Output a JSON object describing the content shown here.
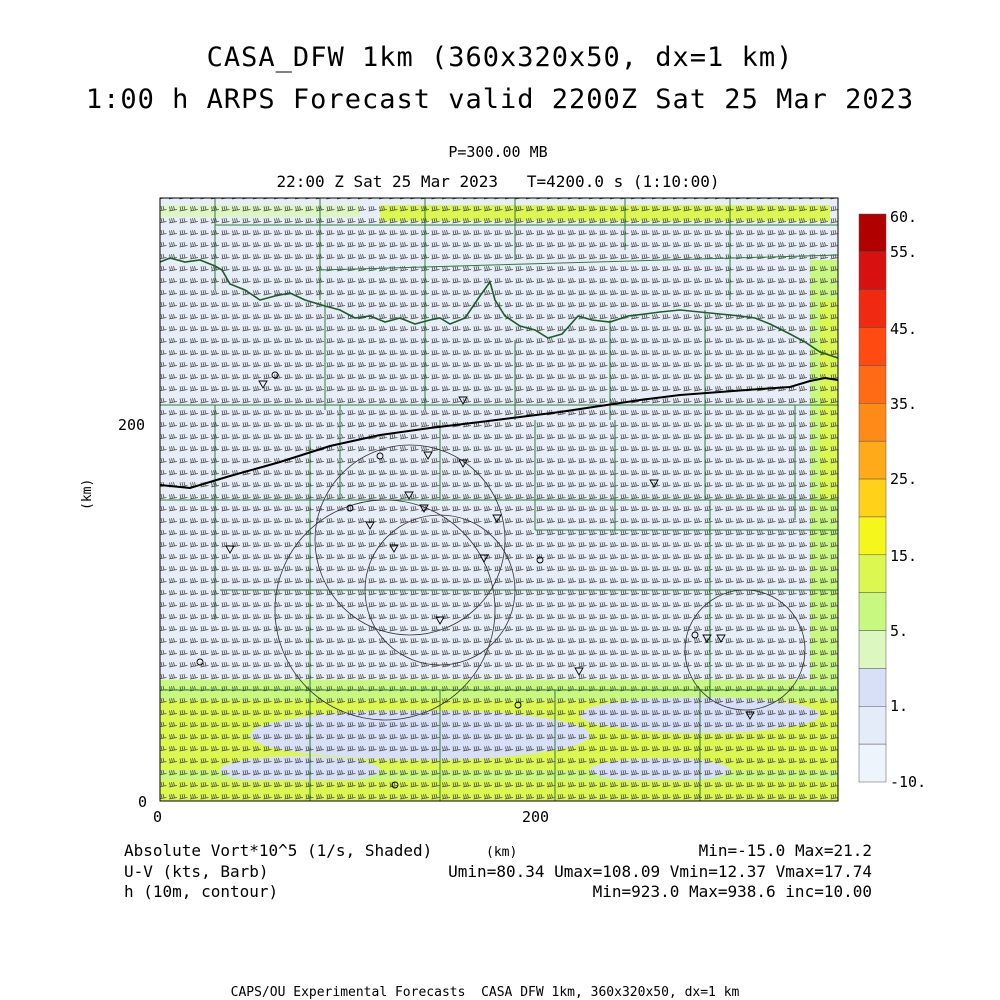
{
  "header": {
    "title_line1": "CASA_DFW 1km (360x320x50, dx=1 km)",
    "title_line2": "1:00 h ARPS Forecast valid 2200Z Sat 25 Mar 2023",
    "pressure": "P=300.00 MB",
    "time_line": "22:00 Z Sat 25 Mar 2023   T=4200.0 s (1:10:00)"
  },
  "axes": {
    "y_label": "(km)",
    "x_label": "(km)",
    "x_ticks": [
      "0",
      "200"
    ],
    "y_ticks": [
      "0",
      "200"
    ]
  },
  "colorbar": {
    "labels": [
      "60.",
      "55.",
      "45.",
      "35.",
      "25.",
      "15.",
      "5.",
      "1.",
      "-10."
    ],
    "colors": [
      "#b00000",
      "#d81010",
      "#f02a10",
      "#ff4a12",
      "#ff6a14",
      "#ff8a18",
      "#ffaa18",
      "#ffd21a",
      "#f4f61c",
      "#dcf850",
      "#c8f880",
      "#dcf8c0",
      "#d8e0f8",
      "#e4ecfa",
      "#eef4fc"
    ]
  },
  "footer": {
    "field1": "Absolute Vort*10^5 (1/s, Shaded)",
    "field2": "U-V (kts, Barb)",
    "field3": "h (10m, contour)",
    "stats1": "Min=-15.0 Max=21.2",
    "stats2": "Umin=80.34 Umax=108.09 Vmin=12.37 Vmax=17.74",
    "stats3": "Min=923.0 Max=938.6 inc=10.00",
    "credit": "CAPS/OU Experimental Forecasts  CASA DFW 1km, 360x320x50, dx=1 km"
  }
}
